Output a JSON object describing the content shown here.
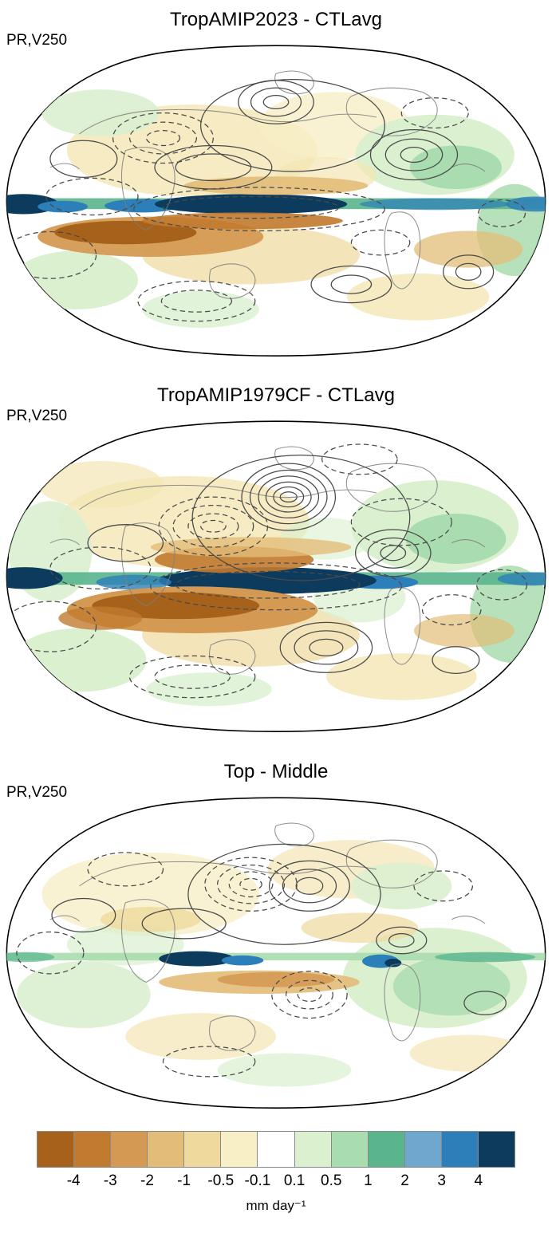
{
  "figure": {
    "panels": [
      {
        "title": "TropAMIP2023 - CTLavg",
        "field_label": "PR,V250"
      },
      {
        "title": "TropAMIP1979CF - CTLavg",
        "field_label": "PR,V250"
      },
      {
        "title": "Top - Middle",
        "field_label": "PR,V250"
      }
    ],
    "colorbar": {
      "tick_labels": [
        "-4",
        "-3",
        "-2",
        "-1",
        "-0.5",
        "-0.1",
        "0.1",
        "0.5",
        "1",
        "2",
        "3",
        "4"
      ],
      "colors": [
        "#a6611a",
        "#c17a2f",
        "#d49a53",
        "#e3bd78",
        "#efd99d",
        "#f8efc7",
        "#ffffff",
        "#daf0cf",
        "#a9dcae",
        "#5ab58d",
        "#6fa8cf",
        "#2c7fb8",
        "#0c3b5e"
      ],
      "unit": "mm day⁻¹"
    }
  },
  "chart_data": {
    "type": "heatmap",
    "title": "Global map panels of shaded precipitation difference (PR) with V250 contours",
    "panels": [
      {
        "title": "TropAMIP2023 - CTLavg",
        "shading": "PR difference",
        "contours": "V250",
        "label": "PR,V250"
      },
      {
        "title": "TropAMIP1979CF - CTLavg",
        "shading": "PR difference",
        "contours": "V250",
        "label": "PR,V250"
      },
      {
        "title": "Top - Middle",
        "shading": "PR difference",
        "contours": "V250",
        "label": "PR,V250"
      }
    ],
    "colorbar_levels": [
      -4,
      -3,
      -2,
      -1,
      -0.5,
      -0.1,
      0.1,
      0.5,
      1,
      2,
      3,
      4
    ],
    "colorbar_colors": [
      "#a6611a",
      "#c17a2f",
      "#d49a53",
      "#e3bd78",
      "#efd99d",
      "#f8efc7",
      "#ffffff",
      "#daf0cf",
      "#a9dcae",
      "#5ab58d",
      "#6fa8cf",
      "#2c7fb8",
      "#0c3b5e"
    ],
    "units": "mm day⁻¹",
    "projection": "global ellipse (Winkel/Robinson style)",
    "legend_position": "bottom colorbar",
    "contour_convention": {
      "solid": "positive values",
      "dashed": "negative values"
    }
  }
}
